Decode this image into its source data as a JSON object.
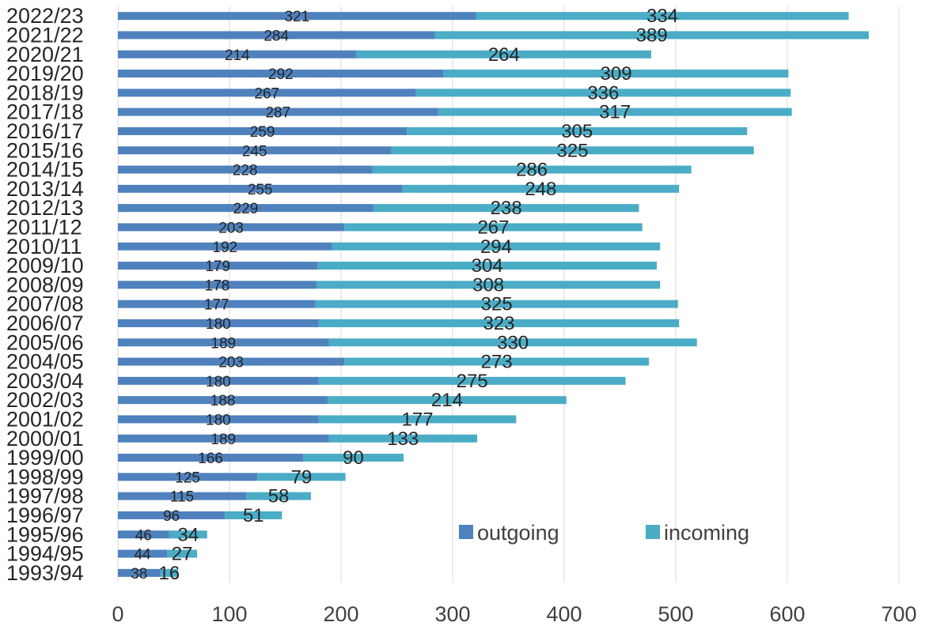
{
  "chart_data": {
    "type": "bar",
    "orientation": "horizontal",
    "stacked": true,
    "title": "",
    "xlabel": "",
    "ylabel": "",
    "xlim": [
      0,
      700
    ],
    "xticks": [
      0,
      100,
      200,
      300,
      400,
      500,
      600,
      700
    ],
    "grid": true,
    "legend_position": "bottom-right",
    "categories": [
      "2022/23",
      "2021/22",
      "2020/21",
      "2019/20",
      "2018/19",
      "2017/18",
      "2016/17",
      "2015/16",
      "2014/15",
      "2013/14",
      "2012/13",
      "2011/12",
      "2010/11",
      "2009/10",
      "2008/09",
      "2007/08",
      "2006/07",
      "2005/06",
      "2004/05",
      "2003/04",
      "2002/03",
      "2001/02",
      "2000/01",
      "1999/00",
      "1998/99",
      "1997/98",
      "1996/97",
      "1995/96",
      "1994/95",
      "1993/94"
    ],
    "series": [
      {
        "name": "outgoing",
        "color": "#4f81bd",
        "values": [
          321,
          284,
          214,
          292,
          267,
          287,
          259,
          245,
          228,
          255,
          229,
          203,
          192,
          179,
          178,
          177,
          180,
          189,
          203,
          180,
          188,
          180,
          189,
          166,
          125,
          115,
          96,
          46,
          44,
          38
        ]
      },
      {
        "name": "incoming",
        "color": "#4bacc6",
        "values": [
          334,
          389,
          264,
          309,
          336,
          317,
          305,
          325,
          286,
          248,
          238,
          267,
          294,
          304,
          308,
          325,
          323,
          330,
          273,
          275,
          214,
          177,
          133,
          90,
          79,
          58,
          51,
          34,
          27,
          16
        ]
      }
    ]
  }
}
